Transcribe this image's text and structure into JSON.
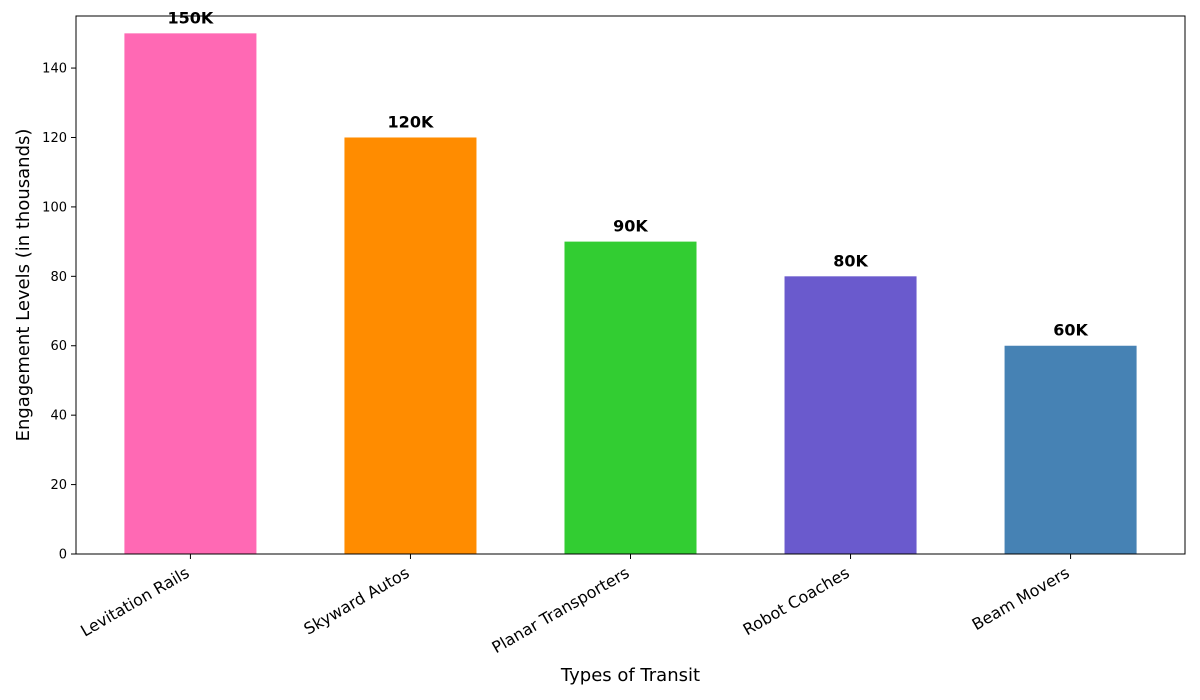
{
  "chart_data": {
    "type": "bar",
    "title": "",
    "xlabel": "Types of Transit",
    "ylabel": "Engagement Levels (in thousands)",
    "ylim": [
      0,
      155
    ],
    "yticks": [
      0,
      20,
      40,
      60,
      80,
      100,
      120,
      140
    ],
    "grid": false,
    "categories": [
      "Levitation Rails",
      "Skyward Autos",
      "Planar Transporters",
      "Robot Coaches",
      "Beam Movers"
    ],
    "values": [
      150,
      120,
      90,
      80,
      60
    ],
    "data_labels": [
      "150K",
      "120K",
      "90K",
      "80K",
      "60K"
    ],
    "colors": [
      "#ff69b4",
      "#ff8c00",
      "#32cd32",
      "#6a5acd",
      "#4682b4"
    ]
  }
}
